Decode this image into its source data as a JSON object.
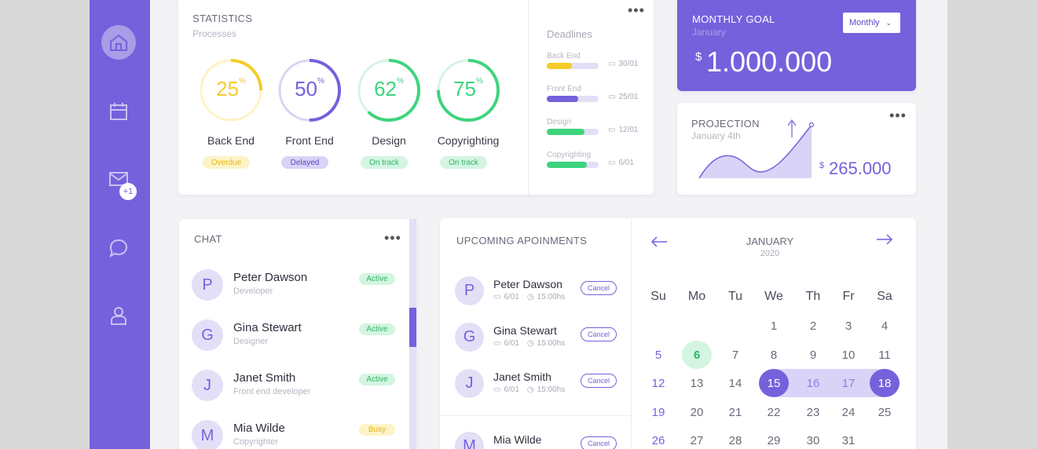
{
  "sidebar": {
    "items": [
      {
        "icon": "home-icon"
      },
      {
        "icon": "calendar-icon"
      },
      {
        "icon": "mail-icon",
        "badge": "+1"
      },
      {
        "icon": "chat-icon"
      },
      {
        "icon": "user-icon"
      }
    ]
  },
  "statistics": {
    "title": "STATISTICS",
    "subtitle": "Processes",
    "gauges": [
      {
        "value": "25",
        "percent": 25,
        "name": "Back End",
        "status": "Overdue",
        "color": "#f5cc2a",
        "status_bg": "#fdf3c6",
        "status_color": "#e1b515"
      },
      {
        "value": "50",
        "percent": 50,
        "name": "Front End",
        "status": "Delayed",
        "color": "#7561dc",
        "status_bg": "#d9d3f7",
        "status_color": "#5a48c0"
      },
      {
        "value": "62",
        "percent": 62,
        "name": "Design",
        "status": "On track",
        "color": "#3ed47c",
        "status_bg": "#d3f5e1",
        "status_color": "#2fb564"
      },
      {
        "value": "75",
        "percent": 75,
        "name": "Copyrighting",
        "status": "On track",
        "color": "#3ed47c",
        "status_bg": "#d3f5e1",
        "status_color": "#2fb564"
      }
    ],
    "percent_sign": "%"
  },
  "deadlines": {
    "title": "Deadlines",
    "items": [
      {
        "name": "Back End",
        "date": "30/01",
        "fill": 0.48,
        "color": "#f5cc2a"
      },
      {
        "name": "Front End",
        "date": "25/01",
        "fill": 0.6,
        "color": "#7561dc"
      },
      {
        "name": "Design",
        "date": "12/01",
        "fill": 0.72,
        "color": "#3ed47c"
      },
      {
        "name": "Copyrighting",
        "date": "6/01",
        "fill": 0.78,
        "color": "#3ed47c"
      }
    ]
  },
  "monthly_goal": {
    "title": "MONTHLY GOAL",
    "subtitle": "January",
    "select": "Monthly",
    "currency": "$",
    "amount": "1.000.000"
  },
  "projection": {
    "title": "PROJECTION",
    "subtitle": "January 4th",
    "currency": "$",
    "amount": "265.000"
  },
  "chat": {
    "title": "CHAT",
    "people": [
      {
        "initial": "P",
        "name": "Peter Dawson",
        "role": "Developer",
        "status": "Active",
        "status_bg": "#d3f5e1",
        "status_color": "#2fb564"
      },
      {
        "initial": "G",
        "name": "Gina Stewart",
        "role": "Designer",
        "status": "Active",
        "status_bg": "#d3f5e1",
        "status_color": "#2fb564"
      },
      {
        "initial": "J",
        "name": "Janet Smith",
        "role": "Front end developer",
        "status": "Active",
        "status_bg": "#d3f5e1",
        "status_color": "#2fb564"
      },
      {
        "initial": "M",
        "name": "Mia Wilde",
        "role": "Copyrighter",
        "status": "Busy",
        "status_bg": "#fdf3c6",
        "status_color": "#e1b515"
      }
    ]
  },
  "appointments": {
    "title": "UPCOMING APOINMENTS",
    "cancel_label": "Cancel",
    "items": [
      {
        "initial": "P",
        "name": "Peter Dawson",
        "date": "6/01",
        "time": "15:00hs"
      },
      {
        "initial": "G",
        "name": "Gina Stewart",
        "date": "6/01",
        "time": "15:00hs"
      },
      {
        "initial": "J",
        "name": "Janet Smith",
        "date": "6/01",
        "time": "15:00hs"
      },
      {
        "initial": "M",
        "name": "Mia Wilde",
        "date": "",
        "time": ""
      }
    ]
  },
  "calendar": {
    "month": "JANUARY",
    "year": "2020",
    "weekdays": [
      "Su",
      "Mo",
      "Tu",
      "We",
      "Th",
      "Fr",
      "Sa"
    ],
    "weeks": [
      [
        "",
        "",
        "",
        "1",
        "2",
        "3",
        "4"
      ],
      [
        "5",
        "6",
        "7",
        "8",
        "9",
        "10",
        "11"
      ],
      [
        "12",
        "13",
        "14",
        "15",
        "16",
        "17",
        "18"
      ],
      [
        "19",
        "20",
        "21",
        "22",
        "23",
        "24",
        "25"
      ],
      [
        "26",
        "27",
        "28",
        "29",
        "30",
        "31",
        ""
      ]
    ],
    "today": "6",
    "range_start": "15",
    "range_end": "18",
    "accent": "#7561dc",
    "today_bg": "#d3f5e1",
    "today_color": "#2fb564"
  }
}
